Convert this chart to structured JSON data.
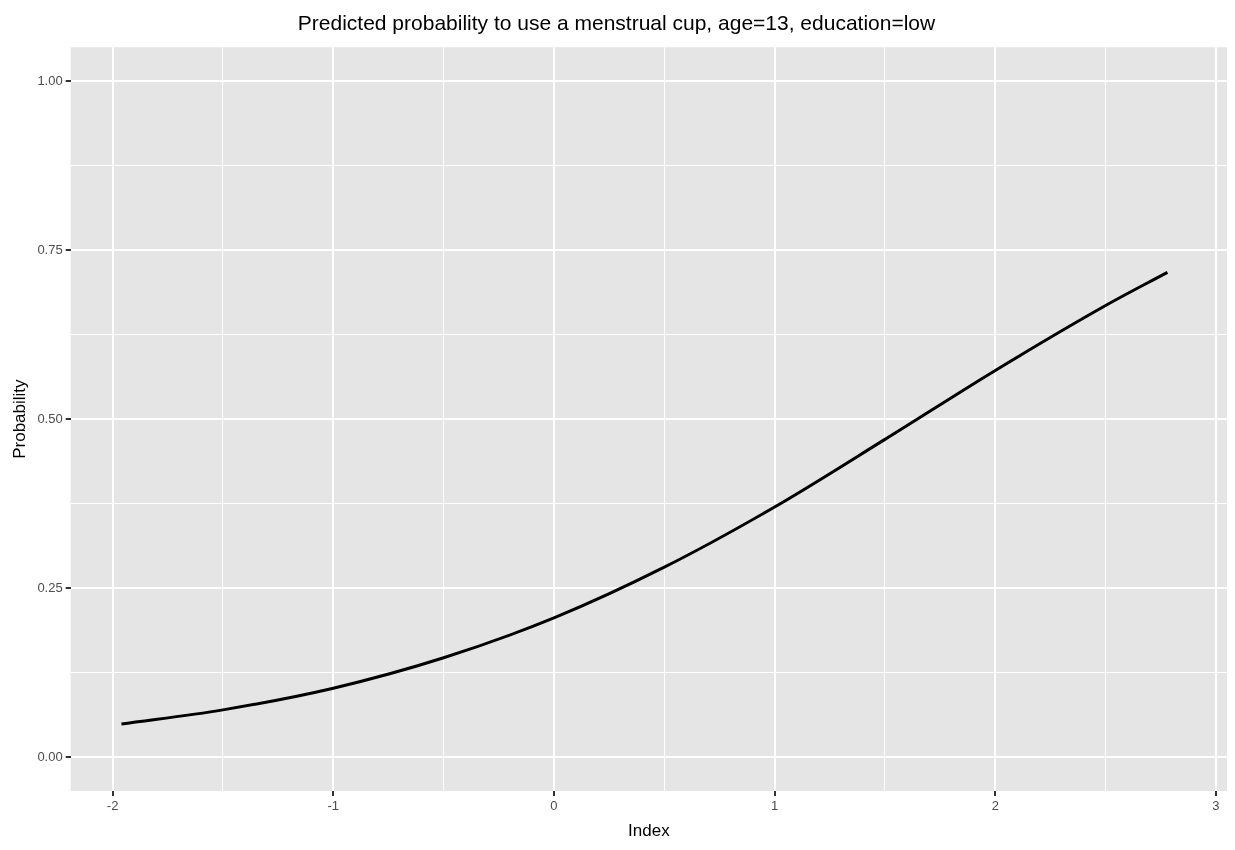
{
  "chart_data": {
    "type": "line",
    "title": "Predicted probability to use a menstrual cup, age=13, education=low",
    "xlabel": "Index",
    "ylabel": "Probability",
    "x": [
      -1.96,
      -1.5,
      -1,
      -0.5,
      0,
      0.5,
      1,
      1.5,
      2,
      2.5,
      2.78
    ],
    "series": [
      {
        "color": "#000000",
        "values": [
          0.049,
          0.07,
          0.102,
          0.147,
          0.206,
          0.281,
          0.37,
          0.47,
          0.572,
          0.668,
          0.717
        ]
      }
    ],
    "xlim": [
      -2.19,
      3.05
    ],
    "ylim": [
      -0.05,
      1.05
    ],
    "xticks": [
      -2,
      {
        "value": -1.5,
        "label": null
      },
      -1,
      {
        "value": -0.5,
        "label": null
      },
      0,
      {
        "value": 0.5,
        "label": null
      },
      1,
      {
        "value": 1.5,
        "label": null
      },
      2,
      {
        "value": 2.5,
        "label": null
      },
      3
    ],
    "yticks": [
      {
        "value": 0,
        "label": "0.00"
      },
      {
        "value": 0.125,
        "label": null
      },
      {
        "value": 0.25,
        "label": "0.25"
      },
      {
        "value": 0.375,
        "label": null
      },
      {
        "value": 0.5,
        "label": "0.50"
      },
      {
        "value": 0.625,
        "label": null
      },
      {
        "value": 0.75,
        "label": "0.75"
      },
      {
        "value": 0.875,
        "label": null
      },
      {
        "value": 1,
        "label": "1.00"
      }
    ],
    "grid": true,
    "legend": false,
    "marker": "none",
    "line_style": "solid"
  }
}
